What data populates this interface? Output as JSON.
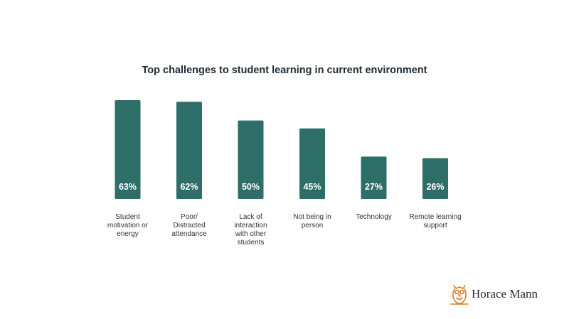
{
  "chart_data": {
    "type": "bar",
    "title": "Top challenges to student learning in current environment",
    "categories": [
      "Student\nmotivation or\nenergy",
      "Poor/\nDistracted\nattendance",
      "Lack of\ninteraction\nwith other\nstudents",
      "Not being in\nperson",
      "Technology",
      "Remote learning\nsupport"
    ],
    "values": [
      63,
      62,
      50,
      45,
      27,
      26
    ],
    "data_labels": [
      "63%",
      "62%",
      "50%",
      "45%",
      "27%",
      "26%"
    ],
    "ylim": [
      0,
      63
    ],
    "grid": false,
    "legend": "none",
    "bar_color": "#2e6e68",
    "label_color": "#ffffff"
  },
  "brand": {
    "name": "Horace Mann",
    "logo_icon": "owl-icon",
    "logo_color": "#e07a1f"
  }
}
